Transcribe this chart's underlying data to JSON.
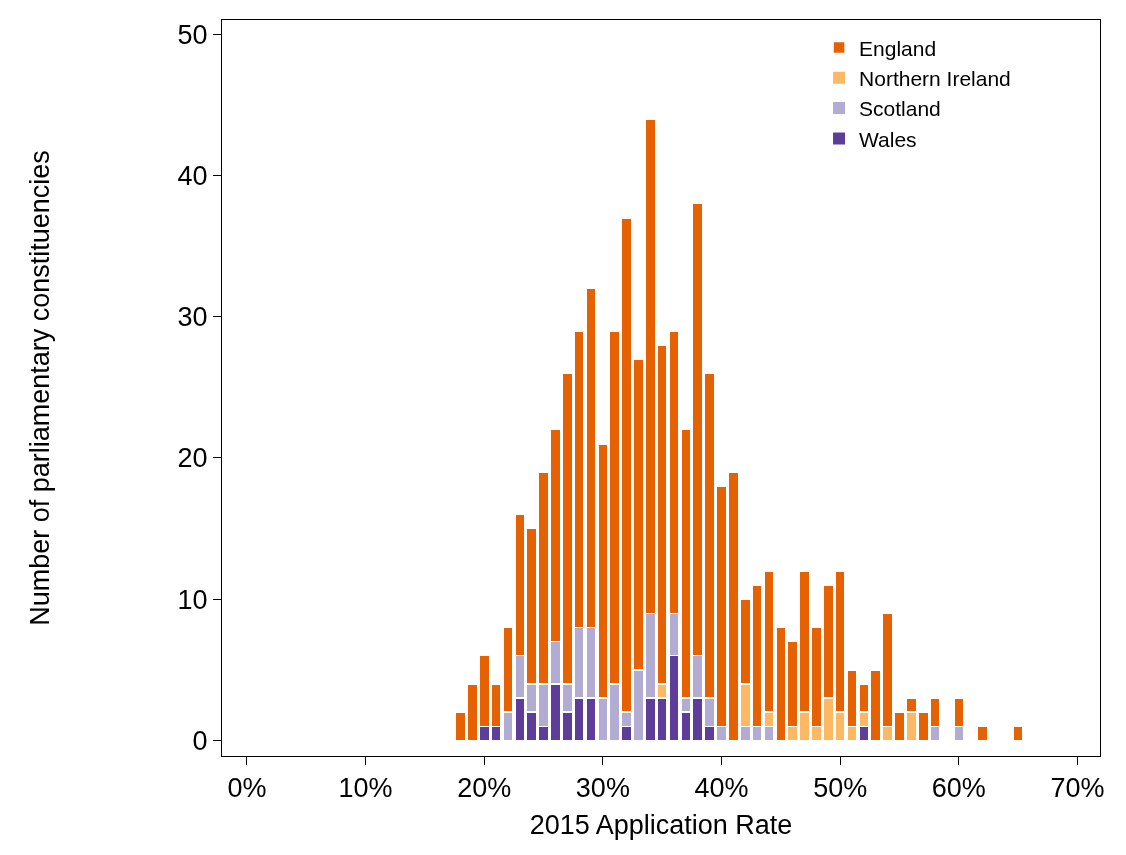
{
  "chart_data": {
    "type": "bar",
    "stacked": true,
    "xlabel": "2015 Application Rate",
    "ylabel": "Number of parliamentary constituencies",
    "x": [
      18,
      19,
      20,
      21,
      22,
      23,
      24,
      25,
      26,
      27,
      28,
      29,
      30,
      31,
      32,
      33,
      34,
      35,
      36,
      37,
      38,
      39,
      40,
      41,
      42,
      43,
      44,
      45,
      46,
      47,
      48,
      49,
      50,
      51,
      52,
      53,
      54,
      55,
      56,
      57,
      58,
      60,
      62,
      65
    ],
    "series": [
      {
        "name": "Wales",
        "color": "#5e3c99",
        "values": [
          0,
          0,
          1,
          1,
          0,
          3,
          2,
          1,
          4,
          2,
          3,
          3,
          0,
          0,
          1,
          0,
          3,
          3,
          6,
          2,
          3,
          1,
          0,
          0,
          0,
          0,
          0,
          0,
          0,
          0,
          0,
          0,
          0,
          0,
          1,
          0,
          0,
          0,
          0,
          0,
          0,
          0,
          0,
          0
        ]
      },
      {
        "name": "Scotland",
        "color": "#b2abd2",
        "values": [
          0,
          0,
          0,
          0,
          2,
          3,
          2,
          3,
          3,
          2,
          5,
          5,
          3,
          4,
          1,
          5,
          6,
          0,
          3,
          1,
          3,
          2,
          1,
          0,
          1,
          1,
          1,
          0,
          0,
          0,
          0,
          0,
          0,
          0,
          0,
          0,
          0,
          0,
          0,
          0,
          1,
          1,
          0,
          0
        ]
      },
      {
        "name": "Northern Ireland",
        "color": "#fdb863",
        "values": [
          0,
          0,
          0,
          0,
          0,
          0,
          0,
          0,
          0,
          0,
          0,
          0,
          0,
          0,
          0,
          0,
          0,
          1,
          0,
          0,
          0,
          0,
          0,
          0,
          3,
          0,
          1,
          0,
          1,
          2,
          1,
          3,
          2,
          1,
          1,
          0,
          1,
          0,
          2,
          0,
          0,
          0,
          0,
          0
        ]
      },
      {
        "name": "England",
        "color": "#e66101",
        "values": [
          2,
          4,
          5,
          3,
          6,
          10,
          11,
          15,
          15,
          22,
          21,
          24,
          18,
          25,
          35,
          22,
          35,
          24,
          20,
          19,
          32,
          23,
          17,
          19,
          6,
          10,
          10,
          8,
          6,
          10,
          7,
          8,
          10,
          4,
          2,
          5,
          8,
          2,
          1,
          2,
          2,
          2,
          1,
          1
        ]
      }
    ],
    "xlim": [
      -2.1,
      71.9
    ],
    "xticks": [
      {
        "value": 0,
        "label": "0%"
      },
      {
        "value": 10,
        "label": "10%"
      },
      {
        "value": 20,
        "label": "20%"
      },
      {
        "value": 30,
        "label": "30%"
      },
      {
        "value": 40,
        "label": "40%"
      },
      {
        "value": 50,
        "label": "50%"
      },
      {
        "value": 60,
        "label": "60%"
      },
      {
        "value": 70,
        "label": "70%"
      }
    ],
    "ylim": [
      -1.1,
      51
    ],
    "yticks": [
      0,
      10,
      20,
      30,
      40,
      50
    ],
    "legend": "top right"
  }
}
